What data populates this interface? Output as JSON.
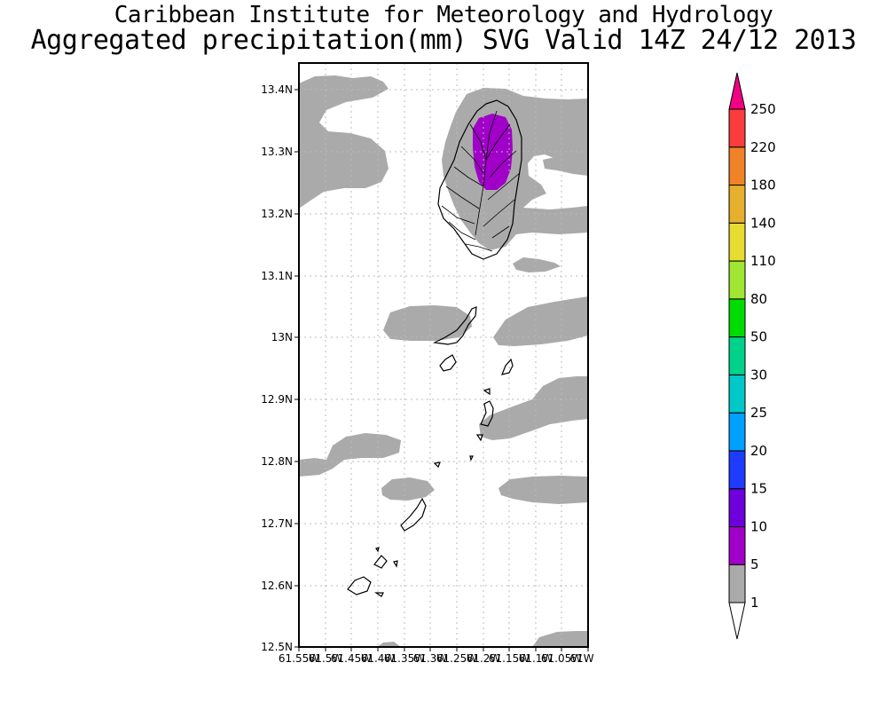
{
  "header": {
    "institute": "Caribbean Institute for Meteorology and Hydrology",
    "product": "Aggregated precipitation(mm) SVG Valid 14Z 24/12 2013"
  },
  "map": {
    "lat_labels": [
      "13.4N",
      "13.3N",
      "13.2N",
      "13.1N",
      "13N",
      "12.9N",
      "12.8N",
      "12.7N",
      "12.6N",
      "12.5N"
    ],
    "lon_labels": [
      "61.55W",
      "61.5W",
      "61.45W",
      "61.4W",
      "61.35W",
      "61.3W",
      "61.25W",
      "61.2W",
      "61.15W",
      "61.1W",
      "61.05W",
      "61W"
    ],
    "lat_range": [
      12.5,
      13.45
    ],
    "lon_range": [
      -61.55,
      -61.0
    ],
    "background_color": "#ffffff",
    "shade_color": "#aaaaaa",
    "max_shade_color": "#a000c8",
    "grid": true
  },
  "legend": {
    "bins": [
      {
        "label": "1",
        "color": "#aaaaaa"
      },
      {
        "label": "5",
        "color": "#a000c8"
      },
      {
        "label": "10",
        "color": "#6e00dc"
      },
      {
        "label": "15",
        "color": "#1e3cff"
      },
      {
        "label": "20",
        "color": "#00a0ff"
      },
      {
        "label": "25",
        "color": "#00c8c8"
      },
      {
        "label": "30",
        "color": "#00d28c"
      },
      {
        "label": "50",
        "color": "#00dc00"
      },
      {
        "label": "80",
        "color": "#a0e632"
      },
      {
        "label": "110",
        "color": "#e6dc32"
      },
      {
        "label": "140",
        "color": "#e6af2d"
      },
      {
        "label": "180",
        "color": "#f08228"
      },
      {
        "label": "220",
        "color": "#fa3c3c"
      },
      {
        "label": "250",
        "color": "#f00082"
      }
    ]
  }
}
